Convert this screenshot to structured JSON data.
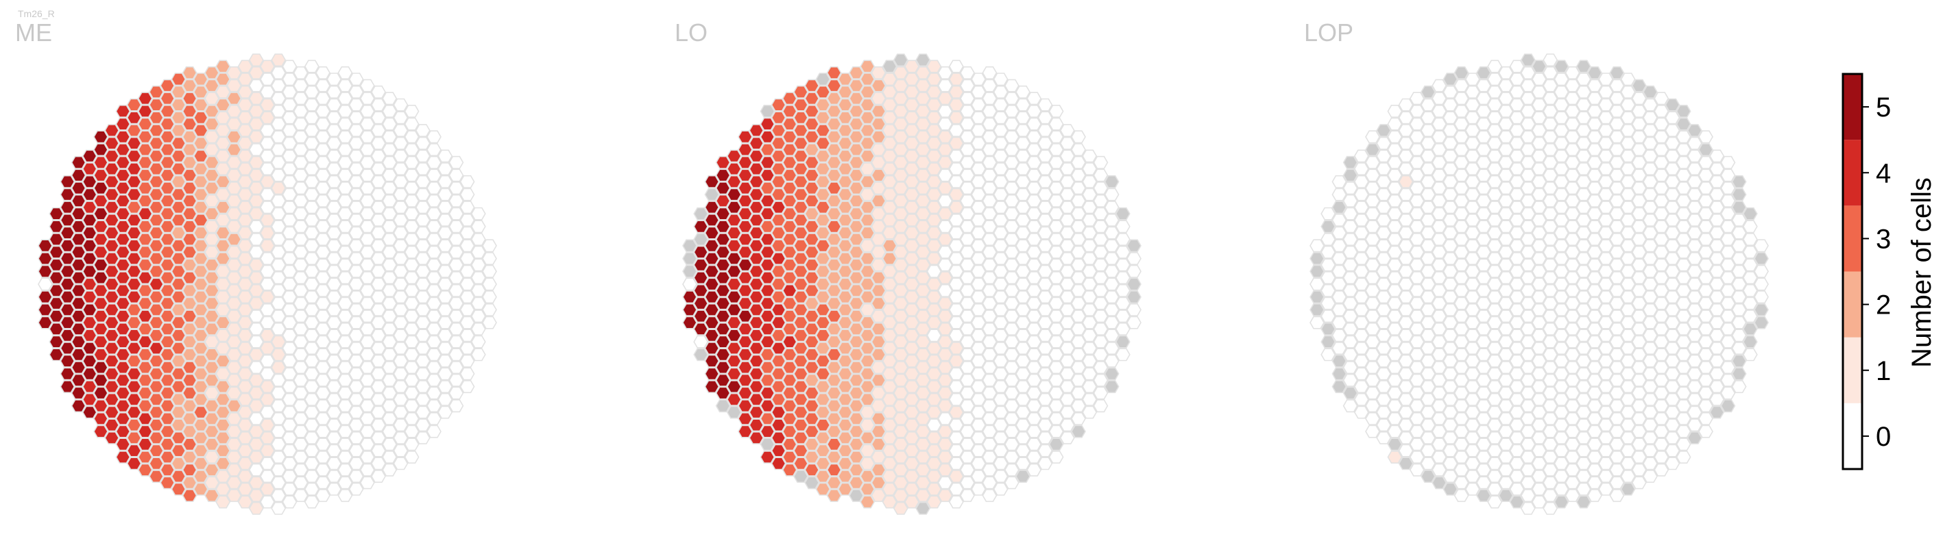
{
  "figure": {
    "cell_type_label": "Tm26_R",
    "panels": [
      {
        "title": "ME"
      },
      {
        "title": "LO"
      },
      {
        "title": "LOP"
      }
    ]
  },
  "colorbar": {
    "label": "Number of cells",
    "ticks": [
      "0",
      "1",
      "2",
      "3",
      "4",
      "5"
    ]
  },
  "colors": {
    "bins": [
      "#ffffff",
      "#fde7de",
      "#f7b091",
      "#f0684c",
      "#d42a25",
      "#9e0e14"
    ],
    "missing_column": "#cccccc",
    "hex_outline": "#e2e2e2",
    "panel_title": "#c8c8c8"
  },
  "chart_data": {
    "type": "heatmap",
    "description_of_values": "Hexagonal column map; each hexagon is one column, colour encodes number of cells (0 to 5); grey = column not present",
    "colorbar": {
      "min": 0,
      "max": 5,
      "ticks": [
        0,
        1,
        2,
        3,
        4,
        5
      ],
      "label": "Number of cells"
    },
    "panels": [
      {
        "name": "ME",
        "pattern": "cells concentrated on left (posterior) half: 5 at far left center, decreasing to 0 toward right",
        "value_bands_by_x_fraction": [
          {
            "x_range": [
              0.0,
              0.12
            ],
            "value": 5
          },
          {
            "x_range": [
              0.12,
              0.22
            ],
            "value": 4
          },
          {
            "x_range": [
              0.22,
              0.32
            ],
            "value": 3
          },
          {
            "x_range": [
              0.32,
              0.4
            ],
            "value": 2
          },
          {
            "x_range": [
              0.4,
              0.5
            ],
            "value": 1
          },
          {
            "x_range": [
              0.5,
              1.0
            ],
            "value": 0
          }
        ]
      },
      {
        "name": "LO",
        "pattern": "lower-left concentration up to 5, scattered 1-3 toward middle, 0 on right; grey columns at rim",
        "value_bands_by_x_fraction": [
          {
            "x_range": [
              0.0,
              0.1
            ],
            "value": 5
          },
          {
            "x_range": [
              0.1,
              0.2
            ],
            "value": 4
          },
          {
            "x_range": [
              0.2,
              0.3
            ],
            "value": 3
          },
          {
            "x_range": [
              0.3,
              0.42
            ],
            "value": 2
          },
          {
            "x_range": [
              0.42,
              0.58
            ],
            "value": 1
          },
          {
            "x_range": [
              0.58,
              1.0
            ],
            "value": 0
          }
        ]
      },
      {
        "name": "LOP",
        "pattern": "nearly all 0; a few isolated 1 and one 2-3 column on left; many grey rim columns",
        "value_bands_by_x_fraction": [
          {
            "x_range": [
              0.0,
              1.0
            ],
            "value": 0
          }
        ]
      }
    ]
  }
}
